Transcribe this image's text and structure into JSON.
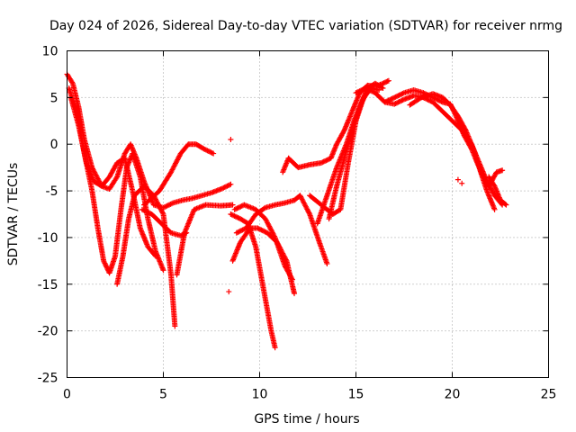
{
  "chart_data": {
    "type": "scatter",
    "title": "Day 024 of 2026, Sidereal Day-to-day VTEC variation (SDTVAR) for receiver nrmg",
    "xlabel": "GPS time / hours",
    "ylabel": "SDTVAR / TECUs",
    "xlim": [
      0,
      25
    ],
    "ylim": [
      -25,
      10
    ],
    "xticks": [
      0,
      5,
      10,
      15,
      20,
      25
    ],
    "yticks": [
      -25,
      -20,
      -15,
      -10,
      -5,
      0,
      5,
      10
    ],
    "grid": true,
    "marker": "+",
    "series_color": "#ff0000",
    "series": [
      {
        "name": "track-1",
        "points": [
          [
            0.0,
            7.5
          ],
          [
            0.3,
            6.5
          ],
          [
            0.6,
            4.0
          ],
          [
            0.9,
            0.5
          ],
          [
            1.3,
            -2.5
          ],
          [
            1.8,
            -4.5
          ],
          [
            2.2,
            -4.8
          ],
          [
            2.6,
            -3.5
          ],
          [
            3.0,
            -1.0
          ],
          [
            3.3,
            0.0
          ],
          [
            3.6,
            -1.5
          ],
          [
            4.0,
            -4.0
          ],
          [
            4.5,
            -6.5
          ],
          [
            5.0,
            -6.8
          ],
          [
            5.5,
            -6.3
          ],
          [
            6.0,
            -6.0
          ],
          [
            6.5,
            -5.8
          ],
          [
            7.0,
            -5.5
          ],
          [
            7.5,
            -5.2
          ],
          [
            8.0,
            -4.8
          ],
          [
            8.5,
            -4.3
          ]
        ]
      },
      {
        "name": "track-2",
        "points": [
          [
            0.1,
            6.0
          ],
          [
            0.5,
            3.5
          ],
          [
            0.9,
            -1.0
          ],
          [
            1.3,
            -5.0
          ],
          [
            1.6,
            -9.0
          ],
          [
            1.9,
            -12.5
          ],
          [
            2.2,
            -13.8
          ],
          [
            2.5,
            -12.0
          ],
          [
            2.8,
            -7.0
          ],
          [
            3.1,
            -2.5
          ],
          [
            3.4,
            -1.0
          ],
          [
            3.8,
            -3.5
          ],
          [
            4.2,
            -8.0
          ],
          [
            4.6,
            -11.5
          ],
          [
            5.0,
            -13.5
          ]
        ]
      },
      {
        "name": "track-3",
        "points": [
          [
            0.2,
            5.0
          ],
          [
            0.6,
            2.0
          ],
          [
            1.0,
            -2.0
          ],
          [
            1.4,
            -4.0
          ],
          [
            1.8,
            -4.5
          ],
          [
            2.2,
            -3.5
          ],
          [
            2.6,
            -2.0
          ],
          [
            3.0,
            -1.5
          ],
          [
            3.4,
            -5.0
          ],
          [
            3.8,
            -9.0
          ],
          [
            4.2,
            -11.0
          ],
          [
            4.6,
            -12.0
          ]
        ]
      },
      {
        "name": "track-4",
        "points": [
          [
            2.6,
            -15.0
          ],
          [
            2.9,
            -12.0
          ],
          [
            3.2,
            -8.0
          ],
          [
            3.5,
            -5.5
          ],
          [
            4.0,
            -4.5
          ],
          [
            4.5,
            -5.5
          ],
          [
            5.0,
            -7.5
          ],
          [
            5.4,
            -14.0
          ],
          [
            5.6,
            -19.5
          ]
        ]
      },
      {
        "name": "track-5",
        "points": [
          [
            3.9,
            -7.0
          ],
          [
            4.4,
            -7.5
          ],
          [
            4.9,
            -8.5
          ],
          [
            5.4,
            -9.5
          ],
          [
            5.9,
            -9.8
          ],
          [
            6.2,
            -9.5
          ]
        ]
      },
      {
        "name": "track-6",
        "points": [
          [
            4.0,
            -6.5
          ],
          [
            4.8,
            -5.0
          ],
          [
            5.4,
            -3.0
          ],
          [
            5.9,
            -1.0
          ],
          [
            6.3,
            0.0
          ],
          [
            6.7,
            0.0
          ],
          [
            7.1,
            -0.5
          ],
          [
            7.6,
            -1.0
          ]
        ]
      },
      {
        "name": "track-7",
        "points": [
          [
            5.7,
            -14.0
          ],
          [
            6.1,
            -9.5
          ],
          [
            6.6,
            -7.0
          ],
          [
            7.2,
            -6.5
          ],
          [
            8.0,
            -6.6
          ],
          [
            8.6,
            -6.5
          ]
        ]
      },
      {
        "name": "track-8",
        "points": [
          [
            8.5,
            -7.5
          ],
          [
            9.0,
            -8.0
          ],
          [
            9.4,
            -8.5
          ],
          [
            9.8,
            -11.0
          ],
          [
            10.2,
            -15.5
          ],
          [
            10.6,
            -20.0
          ],
          [
            10.8,
            -21.8
          ]
        ]
      },
      {
        "name": "track-9",
        "points": [
          [
            8.6,
            -12.5
          ],
          [
            9.0,
            -10.5
          ],
          [
            9.5,
            -9.0
          ],
          [
            9.9,
            -9.0
          ],
          [
            10.4,
            -9.5
          ],
          [
            10.9,
            -10.5
          ],
          [
            11.4,
            -12.5
          ],
          [
            11.8,
            -16.0
          ]
        ]
      },
      {
        "name": "track-10",
        "points": [
          [
            8.7,
            -7.0
          ],
          [
            9.2,
            -6.5
          ],
          [
            9.8,
            -7.0
          ],
          [
            10.3,
            -8.0
          ],
          [
            10.8,
            -10.0
          ],
          [
            11.3,
            -13.0
          ],
          [
            11.7,
            -14.5
          ]
        ]
      },
      {
        "name": "track-11",
        "points": [
          [
            8.8,
            -9.5
          ],
          [
            9.3,
            -9.0
          ],
          [
            9.8,
            -7.5
          ],
          [
            10.3,
            -6.8
          ],
          [
            10.8,
            -6.5
          ],
          [
            11.3,
            -6.3
          ],
          [
            11.8,
            -6.0
          ]
        ]
      },
      {
        "name": "track-12",
        "points": [
          [
            11.8,
            -6.0
          ],
          [
            12.1,
            -5.5
          ],
          [
            12.6,
            -7.5
          ],
          [
            13.1,
            -10.5
          ],
          [
            13.5,
            -12.8
          ]
        ]
      },
      {
        "name": "track-13",
        "points": [
          [
            11.2,
            -3.0
          ],
          [
            11.5,
            -1.5
          ],
          [
            12.0,
            -2.5
          ],
          [
            12.6,
            -2.2
          ],
          [
            13.2,
            -2.0
          ],
          [
            13.7,
            -1.5
          ],
          [
            14.0,
            0.0
          ],
          [
            14.4,
            1.5
          ],
          [
            14.8,
            3.5
          ],
          [
            15.2,
            5.5
          ],
          [
            15.6,
            6.3
          ],
          [
            16.0,
            6.2
          ],
          [
            16.4,
            6.5
          ],
          [
            16.7,
            6.8
          ]
        ]
      },
      {
        "name": "track-14",
        "points": [
          [
            12.6,
            -5.5
          ],
          [
            13.2,
            -6.5
          ],
          [
            13.8,
            -7.5
          ],
          [
            14.2,
            -7.0
          ],
          [
            14.6,
            -2.0
          ],
          [
            15.0,
            2.5
          ],
          [
            15.4,
            5.0
          ],
          [
            15.8,
            6.0
          ],
          [
            16.2,
            5.8
          ]
        ]
      },
      {
        "name": "track-15",
        "points": [
          [
            13.6,
            -8.0
          ],
          [
            14.0,
            -4.5
          ],
          [
            14.4,
            -1.5
          ],
          [
            14.8,
            1.5
          ],
          [
            15.2,
            4.0
          ],
          [
            15.6,
            6.0
          ],
          [
            16.0,
            6.5
          ],
          [
            16.4,
            6.0
          ]
        ]
      },
      {
        "name": "track-16",
        "points": [
          [
            13.0,
            -8.5
          ],
          [
            13.5,
            -5.5
          ],
          [
            14.0,
            -2.5
          ],
          [
            14.5,
            0.0
          ],
          [
            14.9,
            2.5
          ],
          [
            15.3,
            4.5
          ],
          [
            15.7,
            6.0
          ]
        ]
      },
      {
        "name": "track-17",
        "points": [
          [
            15.0,
            5.5
          ],
          [
            15.5,
            6.0
          ],
          [
            16.0,
            5.5
          ],
          [
            16.5,
            4.5
          ],
          [
            17.0,
            4.3
          ],
          [
            17.5,
            4.8
          ],
          [
            18.0,
            5.2
          ],
          [
            18.5,
            5.0
          ],
          [
            19.0,
            4.5
          ],
          [
            19.5,
            3.5
          ],
          [
            20.0,
            2.5
          ],
          [
            20.5,
            1.5
          ],
          [
            21.0,
            0.0
          ],
          [
            21.4,
            -2.0
          ],
          [
            21.8,
            -4.0
          ],
          [
            22.2,
            -5.5
          ],
          [
            22.6,
            -6.5
          ]
        ]
      },
      {
        "name": "track-18",
        "points": [
          [
            16.5,
            4.5
          ],
          [
            17.0,
            5.0
          ],
          [
            17.5,
            5.5
          ],
          [
            18.0,
            5.8
          ],
          [
            18.5,
            5.5
          ],
          [
            19.0,
            5.0
          ],
          [
            19.5,
            4.5
          ],
          [
            19.9,
            4.3
          ],
          [
            20.2,
            3.0
          ],
          [
            20.6,
            1.0
          ],
          [
            21.0,
            -0.5
          ],
          [
            21.4,
            -2.5
          ],
          [
            21.8,
            -5.0
          ],
          [
            22.2,
            -7.0
          ]
        ]
      },
      {
        "name": "track-19",
        "points": [
          [
            17.8,
            4.2
          ],
          [
            18.4,
            5.0
          ],
          [
            19.0,
            5.4
          ],
          [
            19.5,
            5.0
          ],
          [
            19.9,
            4.2
          ],
          [
            20.3,
            3.0
          ],
          [
            20.7,
            1.5
          ],
          [
            21.1,
            -0.5
          ],
          [
            21.5,
            -3.0
          ],
          [
            21.9,
            -4.5
          ],
          [
            22.3,
            -3.0
          ],
          [
            22.6,
            -2.8
          ]
        ]
      },
      {
        "name": "track-20",
        "points": [
          [
            21.9,
            -3.5
          ],
          [
            22.2,
            -4.5
          ],
          [
            22.5,
            -6.0
          ],
          [
            22.8,
            -6.5
          ]
        ]
      },
      {
        "name": "outliers",
        "points": [
          [
            8.5,
            0.5
          ],
          [
            8.4,
            -15.8
          ],
          [
            20.3,
            -3.8
          ],
          [
            20.5,
            -4.2
          ]
        ]
      }
    ]
  }
}
